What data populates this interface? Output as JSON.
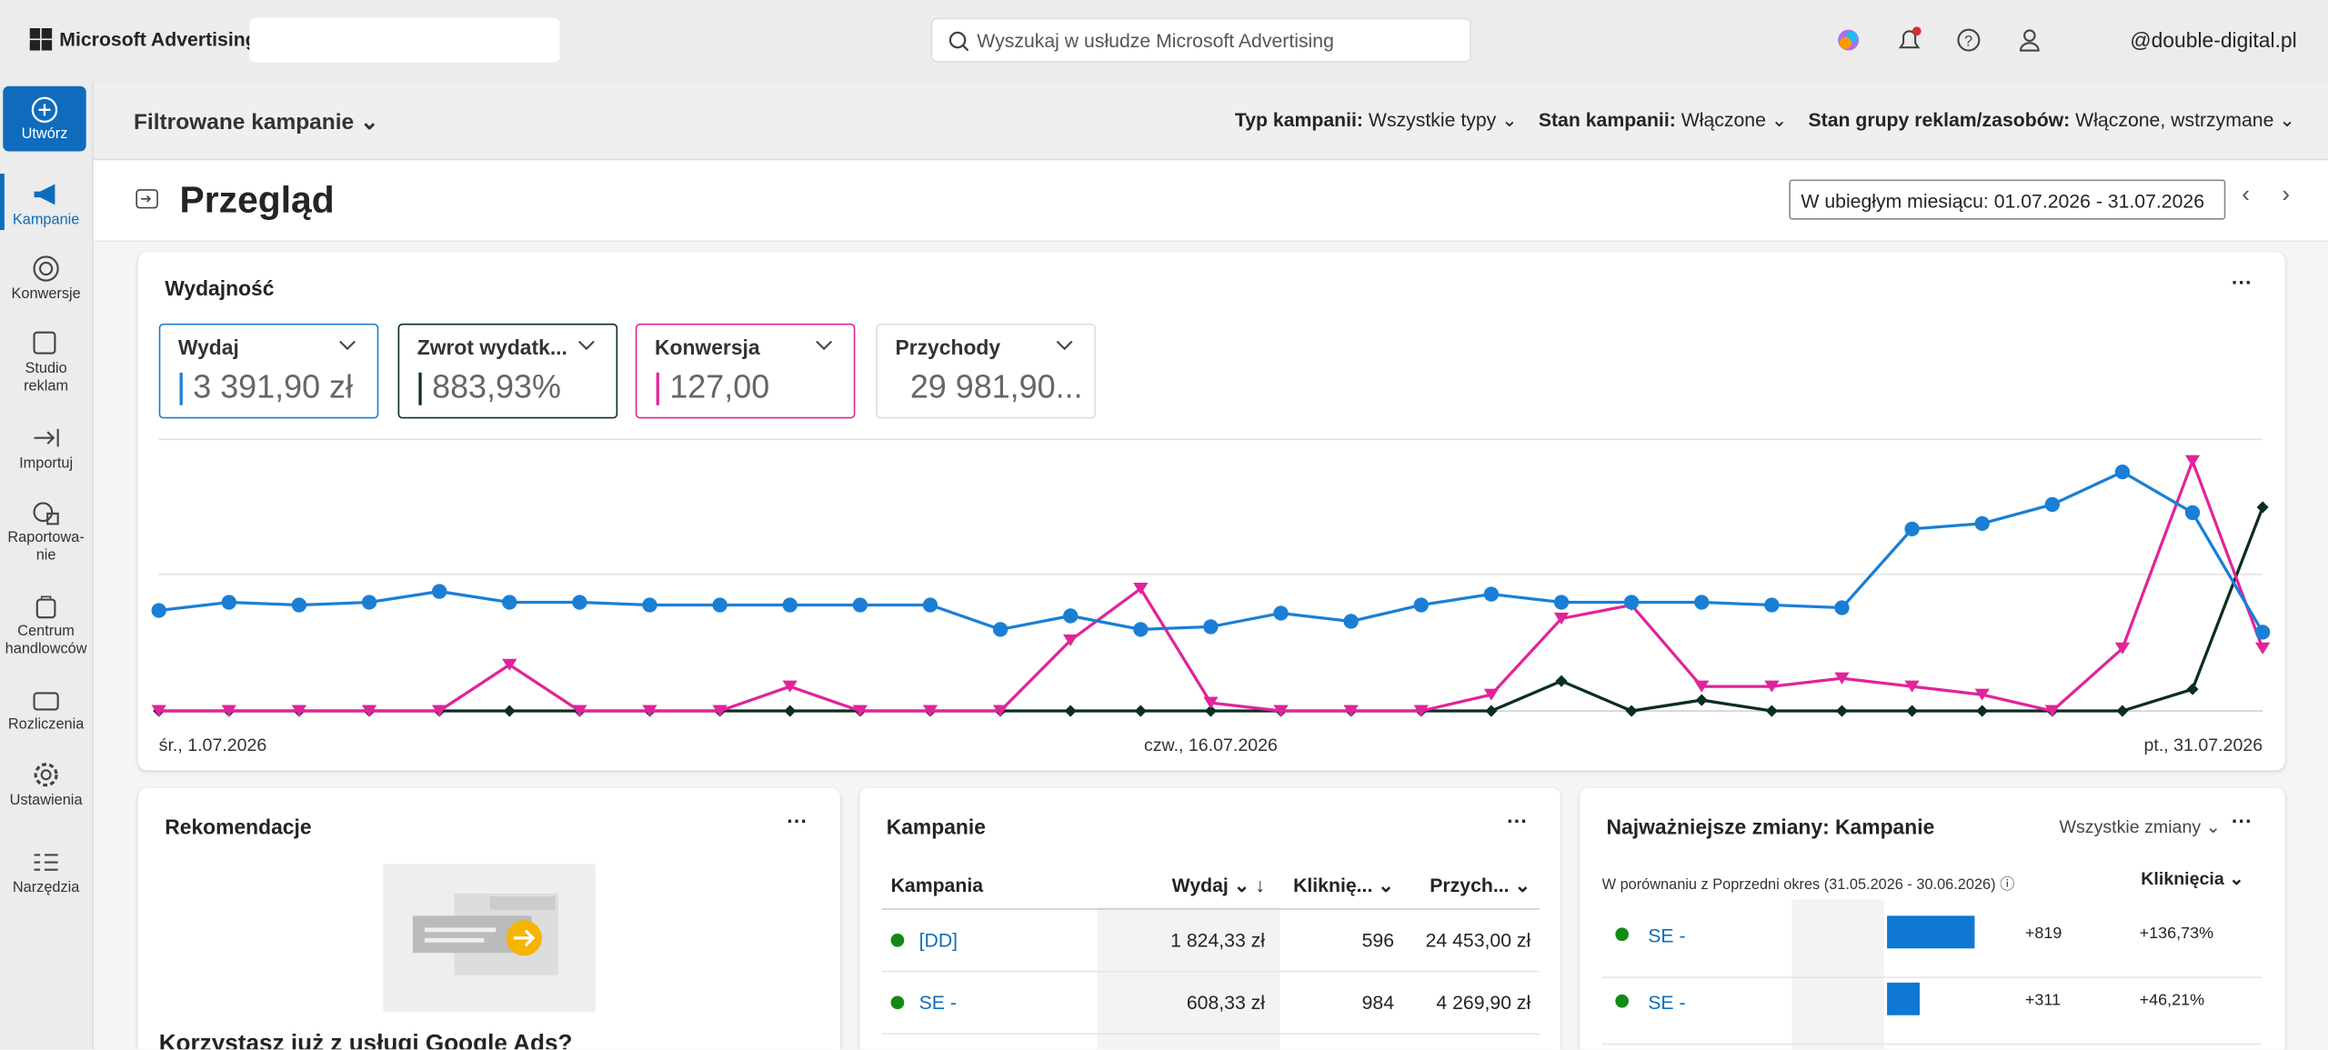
{
  "header": {
    "brand": "Microsoft Advertising",
    "search_placeholder": "Wyszukaj w usłudze Microsoft Advertising",
    "account": "@double-digital.pl"
  },
  "sidebar": {
    "create": "Utwórz",
    "items": [
      "Kampanie",
      "Konwersje",
      "Studio reklam",
      "Importuj",
      "Raportowa-nie",
      "Centrum handlowców",
      "Rozliczenia",
      "Ustawienia",
      "Narzędzia"
    ]
  },
  "filterbar": {
    "title": "Filtrowane kampanie",
    "filters": [
      {
        "label": "Typ kampanii:",
        "value": "Wszystkie typy"
      },
      {
        "label": "Stan kampanii:",
        "value": "Włączone"
      },
      {
        "label": "Stan grupy reklam/zasobów:",
        "value": "Włączone, wstrzymane"
      }
    ]
  },
  "page": {
    "title": "Przegląd",
    "date_range": "W ubiegłym miesiącu: 01.07.2026 - 31.07.2026"
  },
  "performance": {
    "title": "Wydajność",
    "cards": [
      {
        "name": "Wydaj",
        "value": "3 391,90 zł"
      },
      {
        "name": "Zwrot wydatk...",
        "value": "883,93%"
      },
      {
        "name": "Konwersja",
        "value": "127,00"
      },
      {
        "name": "Przychody",
        "value": "29 981,90..."
      }
    ]
  },
  "chart_data": {
    "type": "line",
    "categories": [
      "śr., 1.07.2026",
      null,
      null,
      null,
      null,
      null,
      null,
      null,
      null,
      null,
      null,
      null,
      null,
      null,
      null,
      "czw., 16.07.2026",
      null,
      null,
      null,
      null,
      null,
      null,
      null,
      null,
      null,
      null,
      null,
      null,
      null,
      null,
      "pt., 31.07.2026"
    ],
    "ylim": [
      0,
      100
    ],
    "series": [
      {
        "color": "#0a2e22",
        "marker": "diamond",
        "values": [
          0,
          0,
          0,
          0,
          0,
          0,
          0,
          0,
          0,
          0,
          0,
          0,
          0,
          0,
          0,
          0,
          0,
          0,
          0,
          0,
          11,
          0,
          4,
          0,
          0,
          0,
          0,
          0,
          0,
          8,
          75
        ]
      },
      {
        "color": "#e0249a",
        "marker": "triangle",
        "values": [
          0,
          0,
          0,
          0,
          0,
          17,
          0,
          0,
          0,
          9,
          0,
          0,
          0,
          26,
          45,
          3,
          0,
          0,
          0,
          6,
          34,
          39,
          9,
          9,
          12,
          9,
          6,
          0,
          23,
          92,
          23
        ]
      },
      {
        "color": "#1a7fd4",
        "marker": "circle",
        "values": [
          37,
          40,
          39,
          40,
          44,
          40,
          40,
          39,
          39,
          39,
          39,
          39,
          30,
          35,
          30,
          31,
          36,
          33,
          39,
          43,
          40,
          40,
          40,
          39,
          38,
          67,
          69,
          76,
          88,
          73,
          29
        ]
      }
    ]
  },
  "recommendations": {
    "title": "Rekomendacje",
    "text": "Korzystasz już z usługi Google Ads?"
  },
  "campaigns": {
    "title": "Kampanie",
    "columns": [
      "Kampania",
      "Wydaj",
      "Kliknię...",
      "Przych..."
    ],
    "rows": [
      [
        "[DD]",
        "1 824,33 zł",
        "596",
        "24 453,00 zł"
      ],
      [
        "SE -",
        "608,33 zł",
        "984",
        "4 269,90 zł"
      ]
    ]
  },
  "changes": {
    "title": "Najważniejsze zmiany: Kampanie",
    "filter": "Wszystkie zmiany",
    "comparison": "W porównaniu z Poprzedni okres (31.05.2026 - 30.06.2026)",
    "column": "Kliknięcia",
    "bar_max": 819,
    "rows": [
      {
        "name": "SE -",
        "delta": 819,
        "delta_label": "+819",
        "pct": "+136,73%"
      },
      {
        "name": "SE -",
        "delta": 311,
        "delta_label": "+311",
        "pct": "+46,21%"
      }
    ]
  }
}
